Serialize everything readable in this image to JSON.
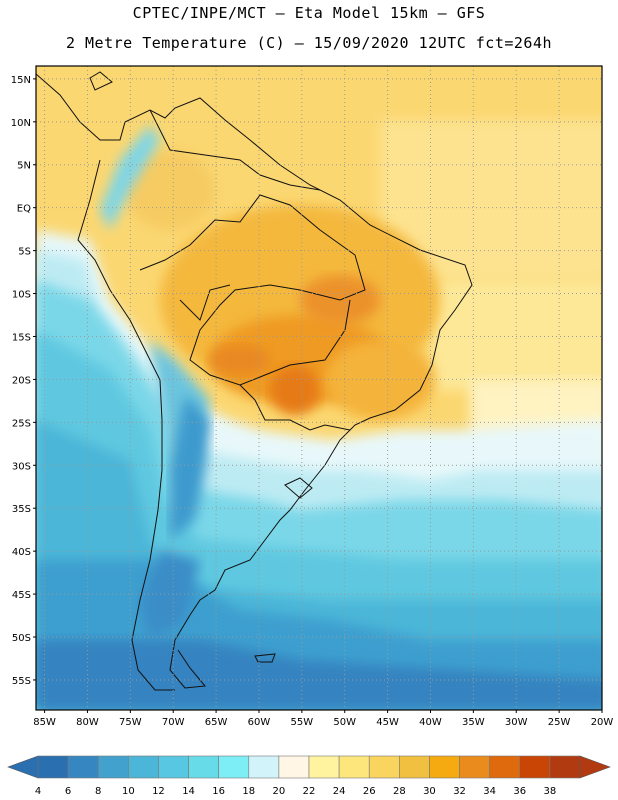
{
  "header": {
    "title_line1": "CPTEC/INPE/MCT –  Eta Model 15km – GFS",
    "title_line2": "2 Metre Temperature (C) – 15/09/2020 12UTC fct=264h"
  },
  "map": {
    "lat_labels": [
      "15N",
      "10N",
      "5N",
      "EQ",
      "5S",
      "10S",
      "15S",
      "20S",
      "25S",
      "30S",
      "35S",
      "40S",
      "45S",
      "50S",
      "55S"
    ],
    "lat_values": [
      15,
      10,
      5,
      0,
      -5,
      -10,
      -15,
      -20,
      -25,
      -30,
      -35,
      -40,
      -45,
      -50,
      -55
    ],
    "lon_labels": [
      "85W",
      "80W",
      "75W",
      "70W",
      "65W",
      "60W",
      "55W",
      "50W",
      "45W",
      "40W",
      "35W",
      "30W",
      "25W",
      "20W"
    ],
    "lon_values": [
      -85,
      -80,
      -75,
      -70,
      -65,
      -60,
      -55,
      -50,
      -45,
      -40,
      -35,
      -30,
      -25,
      -20
    ],
    "lat_range": [
      -58.5,
      16.5
    ],
    "lon_range": [
      -86,
      -20
    ]
  },
  "legend": {
    "labels": [
      "4",
      "6",
      "8",
      "10",
      "12",
      "14",
      "16",
      "18",
      "20",
      "22",
      "24",
      "26",
      "28",
      "30",
      "32",
      "34",
      "36",
      "38"
    ],
    "colors": [
      "#2a6fb0",
      "#3687c1",
      "#43a1cd",
      "#4bb6d8",
      "#58c8e2",
      "#68dbe9",
      "#7deef5",
      "#d3f3fb",
      "#fff6e6",
      "#fff3a0",
      "#fde77c",
      "#f9d45f",
      "#f1c040",
      "#f4aa10",
      "#ea8b1e",
      "#df6a0e",
      "#c84505",
      "#b23a10"
    ],
    "unit": "C"
  }
}
